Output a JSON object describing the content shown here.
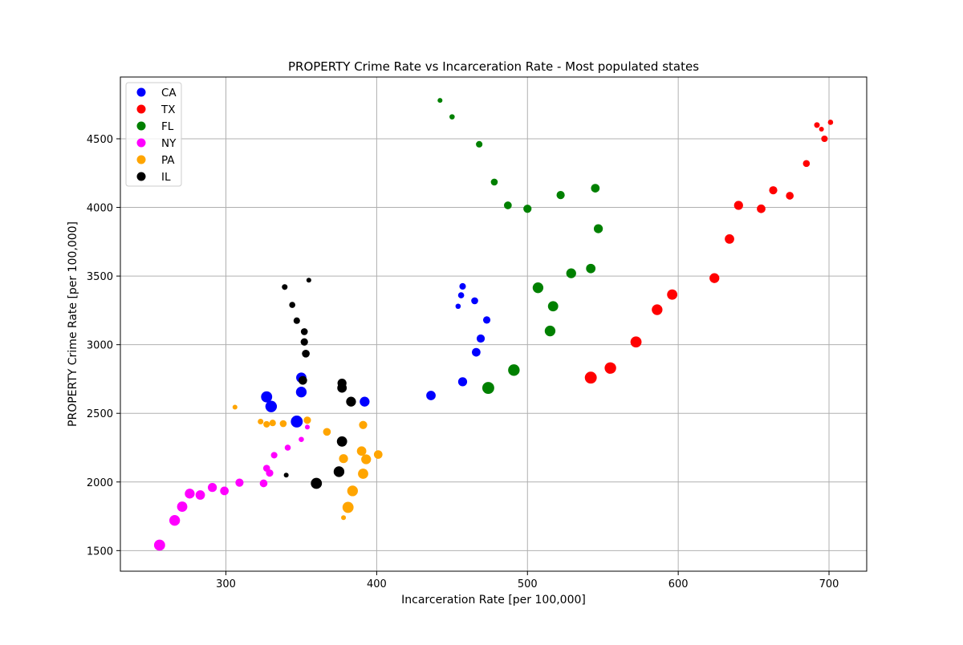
{
  "chart_data": {
    "type": "scatter",
    "title": "PROPERTY Crime Rate vs Incarceration Rate - Most populated states",
    "xlabel": "Incarceration Rate [per 100,000]",
    "ylabel": "PROPERTY Crime Rate [per 100,000]",
    "xlim": [
      230,
      725
    ],
    "ylim": [
      1350,
      4950
    ],
    "xticks": [
      300,
      400,
      500,
      600,
      700
    ],
    "yticks": [
      1500,
      2000,
      2500,
      3000,
      3500,
      4000,
      4500
    ],
    "grid": true,
    "legend_position": "upper-left",
    "point_size_note_free": true,
    "series": [
      {
        "name": "CA",
        "color": "#0000ff",
        "points": [
          [
            454,
            3280,
            0.15
          ],
          [
            456,
            3360,
            0.25
          ],
          [
            457,
            3425,
            0.3
          ],
          [
            465,
            3320,
            0.35
          ],
          [
            473,
            3180,
            0.4
          ],
          [
            469,
            3045,
            0.5
          ],
          [
            466,
            2945,
            0.55
          ],
          [
            457,
            2730,
            0.6
          ],
          [
            436,
            2630,
            0.65
          ],
          [
            392,
            2585,
            0.7
          ],
          [
            350,
            2760,
            0.75
          ],
          [
            350,
            2655,
            0.8
          ],
          [
            327,
            2620,
            0.85
          ],
          [
            330,
            2550,
            0.9
          ],
          [
            347,
            2440,
            0.95
          ]
        ]
      },
      {
        "name": "TX",
        "color": "#ff0000",
        "points": [
          [
            701,
            4620,
            0.15
          ],
          [
            695,
            4570,
            0.1
          ],
          [
            692,
            4600,
            0.2
          ],
          [
            697,
            4500,
            0.3
          ],
          [
            685,
            4320,
            0.35
          ],
          [
            674,
            4085,
            0.45
          ],
          [
            663,
            4125,
            0.5
          ],
          [
            655,
            3990,
            0.55
          ],
          [
            640,
            4015,
            0.6
          ],
          [
            634,
            3770,
            0.65
          ],
          [
            624,
            3485,
            0.7
          ],
          [
            596,
            3365,
            0.75
          ],
          [
            586,
            3255,
            0.8
          ],
          [
            572,
            3020,
            0.85
          ],
          [
            555,
            2830,
            0.9
          ],
          [
            542,
            2760,
            0.95
          ]
        ]
      },
      {
        "name": "FL",
        "color": "#008000",
        "points": [
          [
            442,
            4780,
            0.1
          ],
          [
            450,
            4660,
            0.15
          ],
          [
            468,
            4460,
            0.3
          ],
          [
            478,
            4185,
            0.35
          ],
          [
            487,
            4015,
            0.45
          ],
          [
            500,
            3990,
            0.5
          ],
          [
            522,
            4090,
            0.5
          ],
          [
            545,
            4140,
            0.55
          ],
          [
            547,
            3845,
            0.6
          ],
          [
            542,
            3555,
            0.65
          ],
          [
            529,
            3520,
            0.7
          ],
          [
            507,
            3415,
            0.8
          ],
          [
            517,
            3280,
            0.75
          ],
          [
            515,
            3100,
            0.8
          ],
          [
            491,
            2815,
            0.9
          ],
          [
            474,
            2685,
            0.95
          ]
        ]
      },
      {
        "name": "NY",
        "color": "#ff00ff",
        "points": [
          [
            354,
            2400,
            0.1
          ],
          [
            350,
            2310,
            0.15
          ],
          [
            341,
            2250,
            0.25
          ],
          [
            332,
            2195,
            0.3
          ],
          [
            327,
            2100,
            0.35
          ],
          [
            329,
            2065,
            0.4
          ],
          [
            325,
            1990,
            0.45
          ],
          [
            309,
            1995,
            0.5
          ],
          [
            299,
            1935,
            0.55
          ],
          [
            291,
            1960,
            0.6
          ],
          [
            283,
            1905,
            0.65
          ],
          [
            276,
            1915,
            0.7
          ],
          [
            271,
            1820,
            0.75
          ],
          [
            266,
            1720,
            0.8
          ],
          [
            256,
            1540,
            0.85
          ]
        ]
      },
      {
        "name": "PA",
        "color": "#ffa500",
        "points": [
          [
            306,
            2545,
            0.1
          ],
          [
            323,
            2440,
            0.2
          ],
          [
            327,
            2420,
            0.3
          ],
          [
            331,
            2430,
            0.3
          ],
          [
            338,
            2425,
            0.35
          ],
          [
            354,
            2450,
            0.4
          ],
          [
            367,
            2365,
            0.45
          ],
          [
            391,
            2415,
            0.5
          ],
          [
            401,
            2200,
            0.55
          ],
          [
            378,
            2170,
            0.6
          ],
          [
            390,
            2225,
            0.65
          ],
          [
            393,
            2165,
            0.7
          ],
          [
            391,
            2060,
            0.75
          ],
          [
            384,
            1935,
            0.8
          ],
          [
            381,
            1815,
            0.85
          ],
          [
            378,
            1740,
            0.1
          ]
        ]
      },
      {
        "name": "IL",
        "color": "#000000",
        "points": [
          [
            355,
            3470,
            0.1
          ],
          [
            339,
            3420,
            0.2
          ],
          [
            344,
            3290,
            0.25
          ],
          [
            347,
            3175,
            0.3
          ],
          [
            352,
            3095,
            0.35
          ],
          [
            352,
            3020,
            0.4
          ],
          [
            353,
            2935,
            0.45
          ],
          [
            351,
            2740,
            0.55
          ],
          [
            377,
            2720,
            0.6
          ],
          [
            377,
            2685,
            0.65
          ],
          [
            383,
            2585,
            0.7
          ],
          [
            377,
            2295,
            0.75
          ],
          [
            375,
            2075,
            0.8
          ],
          [
            360,
            1990,
            0.85
          ],
          [
            340,
            2050,
            0.1
          ]
        ]
      }
    ]
  }
}
